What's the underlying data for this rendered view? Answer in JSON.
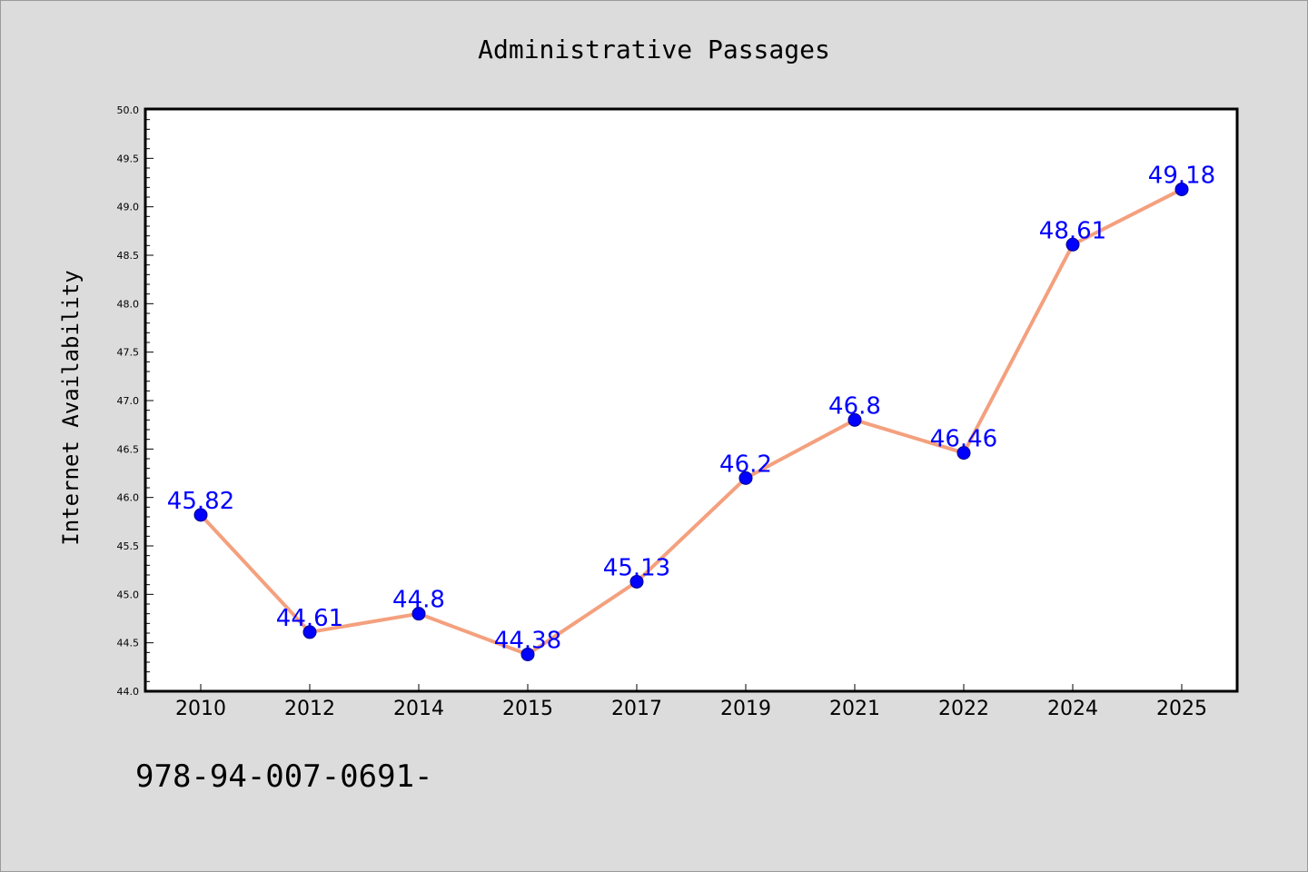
{
  "footer_text": "978-94-007-0691-",
  "chart_data": {
    "type": "line",
    "title": "Administrative Passages",
    "xlabel": "",
    "ylabel": "Internet Availability",
    "categories": [
      "2010",
      "2012",
      "2014",
      "2015",
      "2017",
      "2019",
      "2021",
      "2022",
      "2024",
      "2025"
    ],
    "series": [
      {
        "values": [
          45.82,
          44.61,
          44.8,
          44.38,
          45.13,
          46.2,
          46.8,
          46.46,
          48.61,
          49.18
        ],
        "line_color": "#f4a07e",
        "marker_color": "#0000ff"
      }
    ],
    "data_labels": [
      "45.82",
      "44.61",
      "44.8",
      "44.38",
      "45.13",
      "46.2",
      "46.8",
      "46.46",
      "48.61",
      "49.18"
    ],
    "ylim": [
      44.0,
      50.0
    ],
    "yticks": [
      "44.0",
      "44.5",
      "45.0",
      "45.5",
      "46.0",
      "46.5",
      "47.0",
      "47.5",
      "48.0",
      "48.5",
      "49.0",
      "49.5",
      "50.0"
    ],
    "data_label_color": "#0000ff",
    "grid": false,
    "legend": "none"
  }
}
